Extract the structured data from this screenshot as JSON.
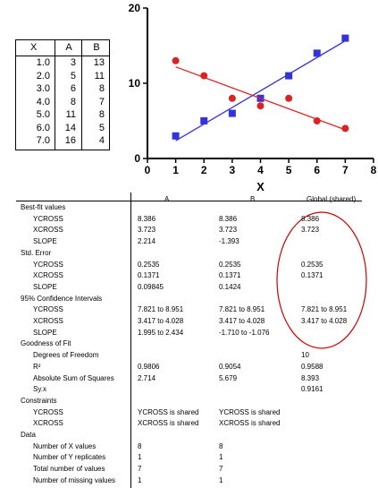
{
  "data_table": {
    "headers": [
      "X",
      "A",
      "B"
    ],
    "rows": [
      [
        "1.0",
        "3",
        "13"
      ],
      [
        "2.0",
        "5",
        "11"
      ],
      [
        "3.0",
        "6",
        "8"
      ],
      [
        "4.0",
        "8",
        "7"
      ],
      [
        "5.0",
        "11",
        "8"
      ],
      [
        "6.0",
        "14",
        "5"
      ],
      [
        "7.0",
        "16",
        "4"
      ]
    ]
  },
  "chart_data": {
    "type": "scatter",
    "xlabel": "X",
    "ylabel": "",
    "xlim": [
      0,
      8
    ],
    "ylim": [
      0,
      20
    ],
    "xticks": [
      0,
      1,
      2,
      3,
      4,
      5,
      6,
      7,
      8
    ],
    "yticks": [
      0,
      10,
      20
    ],
    "series": [
      {
        "marker": "square",
        "color": "#3333dd",
        "points": [
          [
            1,
            3
          ],
          [
            2,
            5
          ],
          [
            3,
            6
          ],
          [
            4,
            8
          ],
          [
            5,
            11
          ],
          [
            6,
            14
          ],
          [
            7,
            16
          ]
        ],
        "fit": {
          "slope": 2.214,
          "xcross": 3.723,
          "ycross": 8.386,
          "x_range": [
            1,
            7
          ]
        }
      },
      {
        "marker": "circle",
        "color": "#dd2222",
        "points": [
          [
            1,
            13
          ],
          [
            2,
            11
          ],
          [
            3,
            8
          ],
          [
            4,
            7
          ],
          [
            5,
            8
          ],
          [
            6,
            5
          ],
          [
            7,
            4
          ]
        ],
        "fit": {
          "slope": -1.393,
          "xcross": 3.723,
          "ycross": 8.386,
          "x_range": [
            1,
            7
          ]
        }
      }
    ]
  },
  "results": {
    "column_headers": [
      "A",
      "B",
      "Global (shared)"
    ],
    "highlight_color": "#cc0000",
    "rows": [
      {
        "kind": "section",
        "label": "Best-fit values"
      },
      {
        "kind": "item",
        "label": "YCROSS",
        "values": [
          "8.386",
          "8.386",
          "8.386"
        ]
      },
      {
        "kind": "item",
        "label": "XCROSS",
        "values": [
          "3.723",
          "3.723",
          "3.723"
        ]
      },
      {
        "kind": "item",
        "label": "SLOPE",
        "values": [
          "2.214",
          "-1.393",
          ""
        ]
      },
      {
        "kind": "section",
        "label": "Std. Error"
      },
      {
        "kind": "item",
        "label": "YCROSS",
        "values": [
          "0.2535",
          "0.2535",
          "0.2535"
        ]
      },
      {
        "kind": "item",
        "label": "XCROSS",
        "values": [
          "0.1371",
          "0.1371",
          "0.1371"
        ]
      },
      {
        "kind": "item",
        "label": "SLOPE",
        "values": [
          "0.09845",
          "0.1424",
          ""
        ]
      },
      {
        "kind": "section",
        "label": "95% Confidence Intervals"
      },
      {
        "kind": "item",
        "label": "YCROSS",
        "values": [
          "7.821 to 8.951",
          "7.821 to 8.951",
          "7.821 to 8.951"
        ]
      },
      {
        "kind": "item",
        "label": "XCROSS",
        "values": [
          "3.417 to 4.028",
          "3.417 to 4.028",
          "3.417 to 4.028"
        ]
      },
      {
        "kind": "item",
        "label": "SLOPE",
        "values": [
          "1.995 to 2.434",
          "-1.710 to -1.076",
          ""
        ]
      },
      {
        "kind": "section",
        "label": "Goodness of Fit"
      },
      {
        "kind": "item",
        "label": "Degrees of Freedom",
        "values": [
          "",
          "",
          "10"
        ]
      },
      {
        "kind": "item",
        "label": "R²",
        "values": [
          "0.9806",
          "0.9054",
          "0.9588"
        ]
      },
      {
        "kind": "item",
        "label": "Absolute Sum of Squares",
        "values": [
          "2.714",
          "5.679",
          "8.393"
        ]
      },
      {
        "kind": "item",
        "label": "Sy.x",
        "values": [
          "",
          "",
          "0.9161"
        ]
      },
      {
        "kind": "section",
        "label": "Constraints"
      },
      {
        "kind": "item",
        "label": "YCROSS",
        "values": [
          "YCROSS is shared",
          "YCROSS is shared",
          ""
        ]
      },
      {
        "kind": "item",
        "label": "XCROSS",
        "values": [
          "XCROSS is shared",
          "XCROSS is shared",
          ""
        ]
      },
      {
        "kind": "section",
        "label": "Data"
      },
      {
        "kind": "item",
        "label": "Number of X values",
        "values": [
          "8",
          "8",
          ""
        ]
      },
      {
        "kind": "item",
        "label": "Number of Y replicates",
        "values": [
          "1",
          "1",
          ""
        ]
      },
      {
        "kind": "item",
        "label": "Total number of values",
        "values": [
          "7",
          "7",
          ""
        ]
      },
      {
        "kind": "item",
        "label": "Number of missing values",
        "values": [
          "1",
          "1",
          ""
        ]
      }
    ]
  }
}
